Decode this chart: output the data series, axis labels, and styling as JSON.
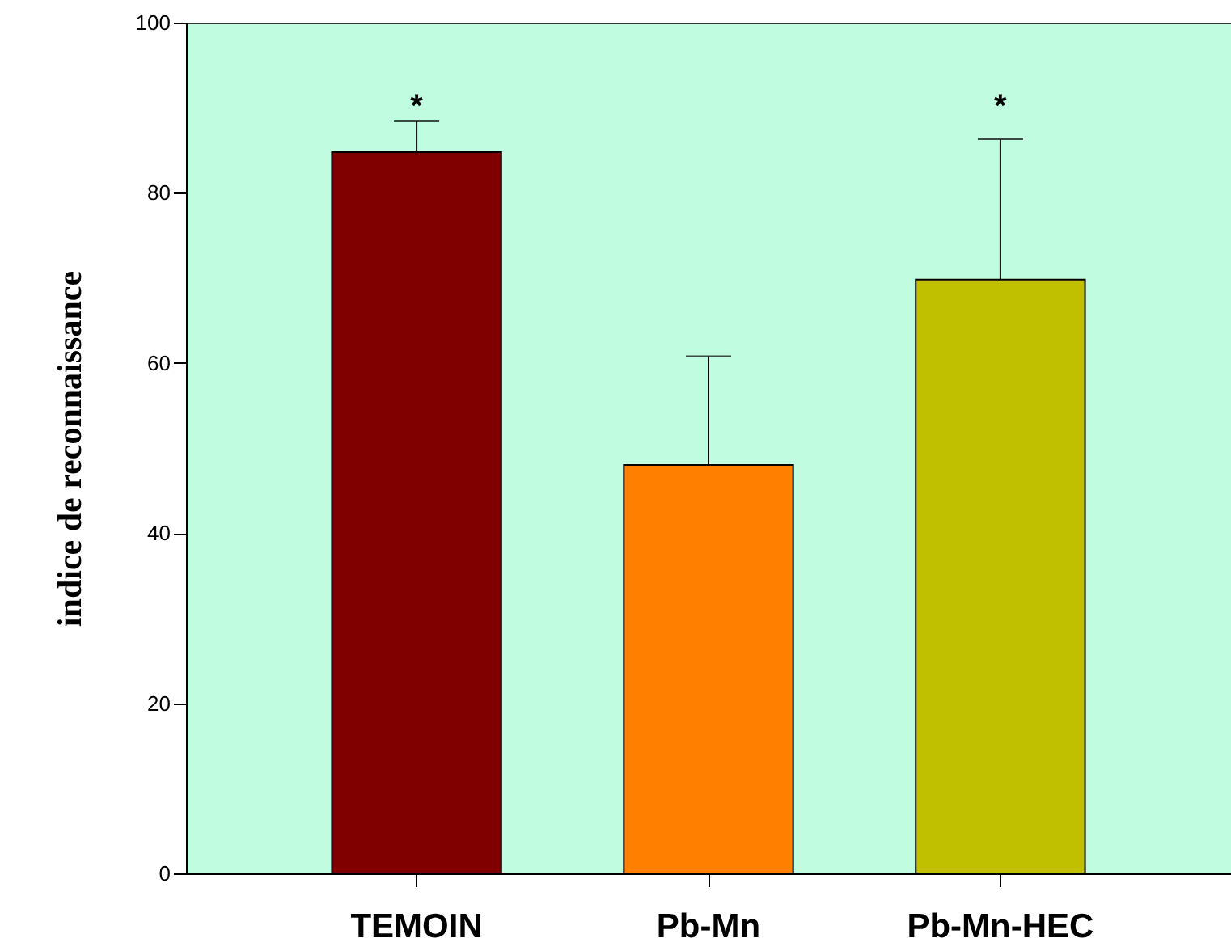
{
  "chart_data": {
    "type": "bar",
    "ylabel": "indice de reconnaissance",
    "categories": [
      "TEMOIN",
      "Pb-Mn",
      "Pb-Mn-HEC"
    ],
    "values": [
      84.8,
      48,
      69.8
    ],
    "colors": [
      "#800000",
      "#ff8000",
      "#c0c000"
    ],
    "errors": [
      [
        84.8,
        88.4
      ],
      [
        48,
        60.8
      ],
      [
        69.8,
        86.3
      ]
    ],
    "ylim": [
      0,
      100
    ],
    "yticks": [
      0,
      20,
      40,
      60,
      80,
      100
    ],
    "grid": false,
    "annotations": [
      "*",
      "*"
    ]
  }
}
